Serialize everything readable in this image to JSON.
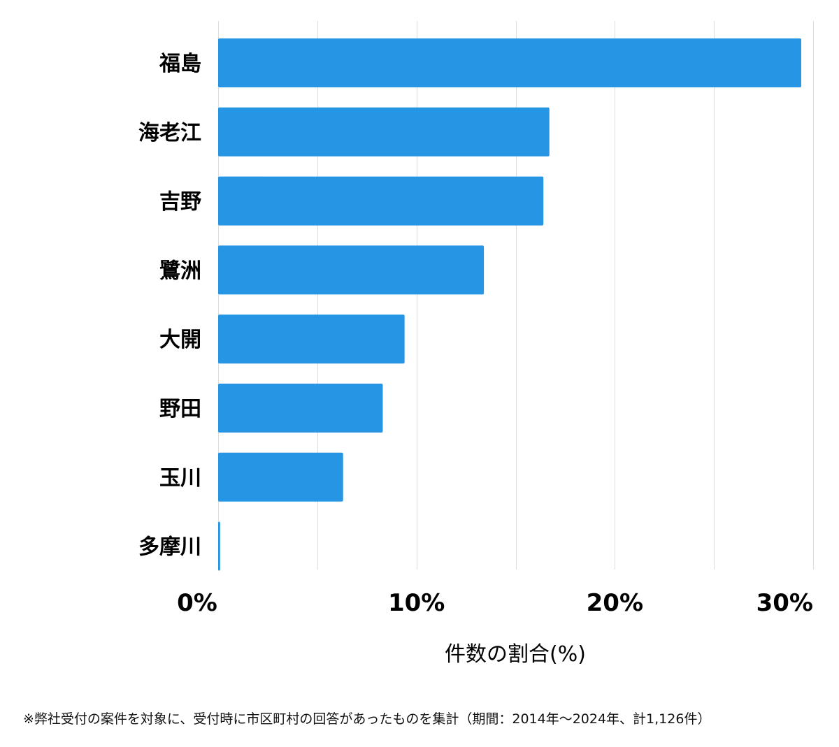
{
  "chart_data": {
    "type": "bar",
    "orientation": "horizontal",
    "categories": [
      "福島",
      "海老江",
      "吉野",
      "鷺洲",
      "大開",
      "野田",
      "玉川",
      "多摩川"
    ],
    "values": [
      29.4,
      16.7,
      16.4,
      13.4,
      9.4,
      8.3,
      6.3,
      0.1
    ],
    "xlabel": "件数の割合(%)",
    "xlim": [
      0,
      30
    ],
    "xticks": [
      0,
      10,
      20,
      30
    ],
    "xtick_labels": [
      "0%",
      "10%",
      "20%",
      "30%"
    ],
    "grid": true,
    "bar_color": "#2595e4"
  },
  "footnote": "※弊社受付の案件を対象に、受付時に市区町村の回答があったものを集計（期間：2014年〜2024年、計1,126件）"
}
